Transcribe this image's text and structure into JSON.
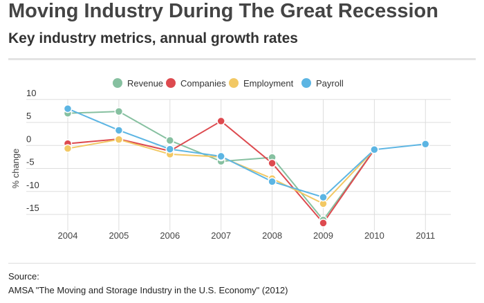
{
  "title": "Moving Industry During The Great Recession",
  "subtitle": "Key industry metrics, annual growth rates",
  "source_label": "Source:",
  "source_text": "AMSA \"The Moving and Storage Industry in the U.S. Economy\" (2012)",
  "chart_data": {
    "type": "line",
    "title": "Moving Industry During The Great Recession",
    "subtitle": "Key industry metrics, annual growth rates",
    "xlabel": "",
    "ylabel": "% change",
    "categories": [
      "2004",
      "2005",
      "2006",
      "2007",
      "2008",
      "2009",
      "2010",
      "2011"
    ],
    "yticks": [
      10,
      5,
      0,
      -5,
      -10,
      -15
    ],
    "ylim": [
      -18,
      11
    ],
    "grid": true,
    "legend_position": "top",
    "series": [
      {
        "name": "Revenue",
        "color": "#86c0a0",
        "values": [
          7.0,
          7.4,
          1.1,
          -3.45,
          -2.6,
          -16.2,
          -0.9,
          null
        ]
      },
      {
        "name": "Companies",
        "color": "#dd4a4f",
        "values": [
          0.4,
          1.4,
          -1.2,
          5.3,
          -3.85,
          -16.85,
          -0.9,
          null
        ]
      },
      {
        "name": "Employment",
        "color": "#f2c864",
        "values": [
          -0.65,
          1.3,
          -1.9,
          -2.5,
          -7.2,
          -12.65,
          -0.9,
          null
        ]
      },
      {
        "name": "Payroll",
        "color": "#5cb5e3",
        "values": [
          8.0,
          3.3,
          -0.8,
          -2.35,
          -7.85,
          -11.25,
          -0.9,
          0.3
        ]
      }
    ]
  }
}
